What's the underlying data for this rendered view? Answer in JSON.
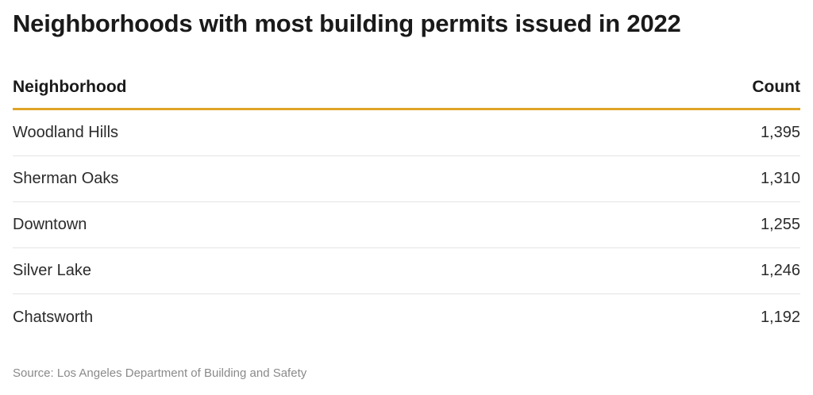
{
  "title": "Neighborhoods with most building permits issued in 2022",
  "source": "Source: Los Angeles Department of Building and Safety",
  "colors": {
    "accent_rule": "#e0a526",
    "row_divider": "#e3e3e3",
    "text": "#2b2b2b",
    "source_text": "#8a8a8a"
  },
  "chart_data": {
    "type": "table",
    "title": "Neighborhoods with most building permits issued in 2022",
    "columns": [
      "Neighborhood",
      "Count"
    ],
    "rows": [
      {
        "neighborhood": "Woodland Hills",
        "count": "1,395"
      },
      {
        "neighborhood": "Sherman Oaks",
        "count": "1,310"
      },
      {
        "neighborhood": "Downtown",
        "count": "1,255"
      },
      {
        "neighborhood": "Silver Lake",
        "count": "1,246"
      },
      {
        "neighborhood": "Chatsworth",
        "count": "1,192"
      }
    ],
    "values": [
      1395,
      1310,
      1255,
      1246,
      1192
    ]
  }
}
